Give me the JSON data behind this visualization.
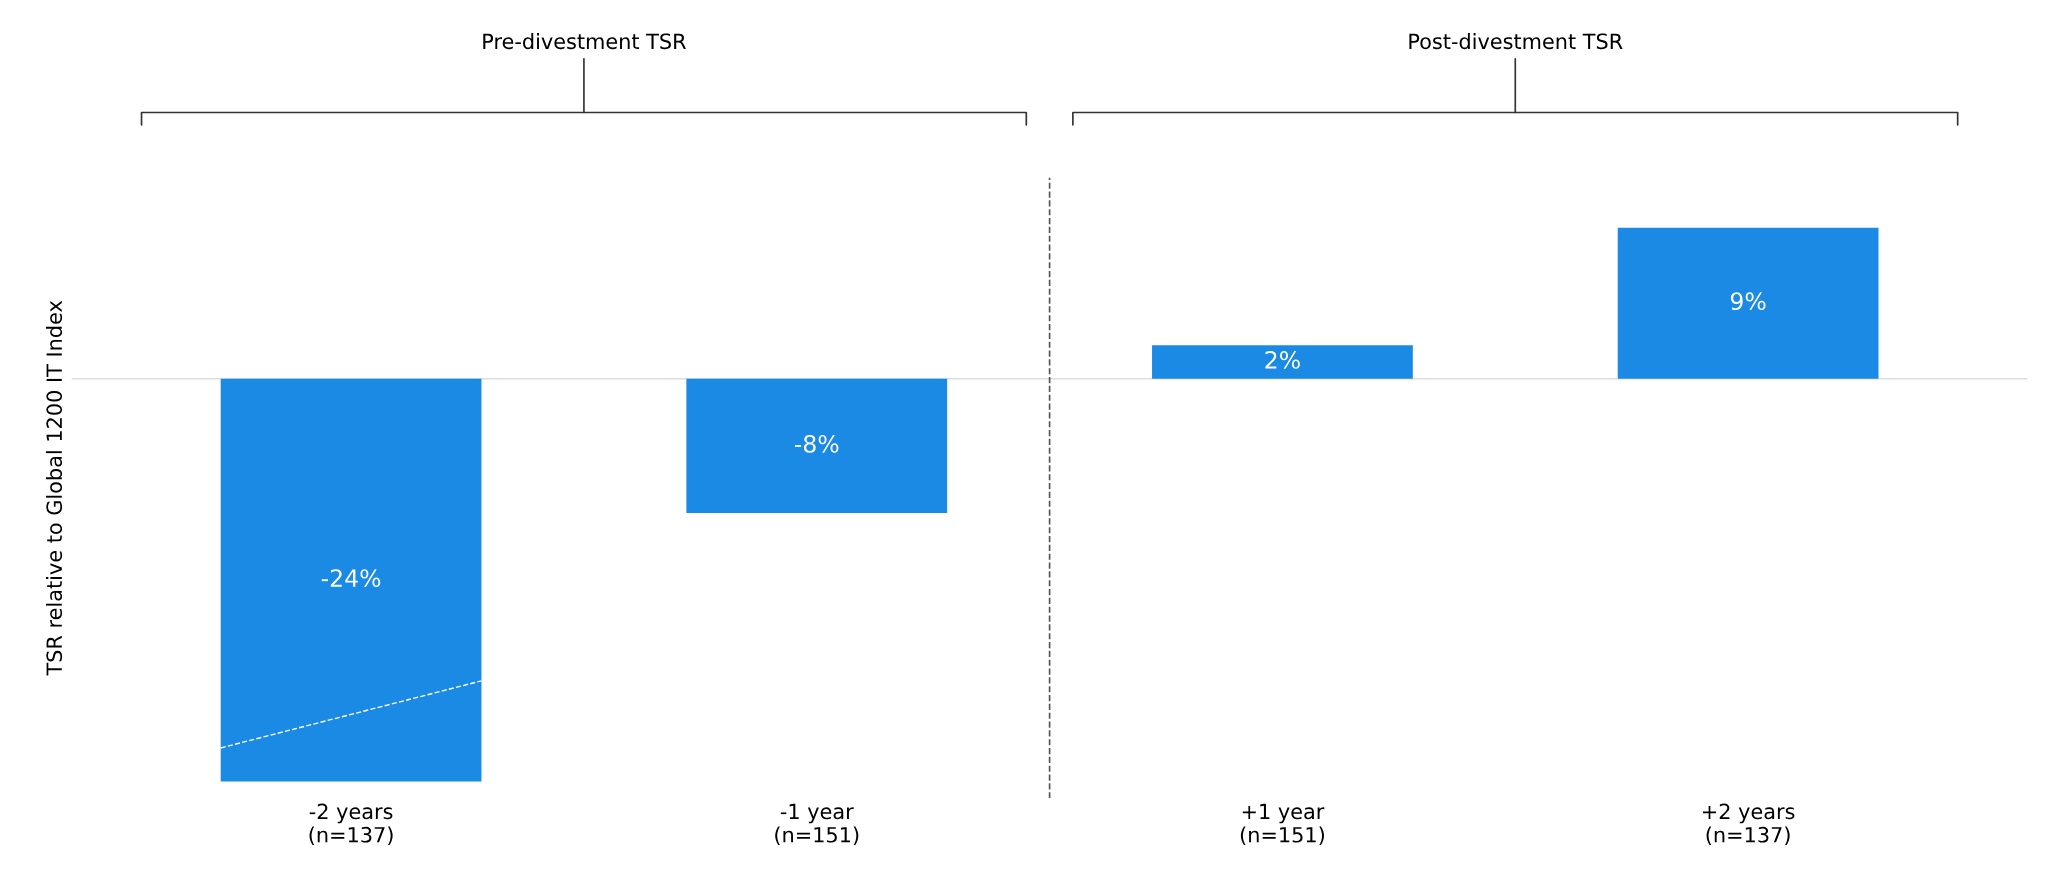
{
  "chart_data": {
    "type": "bar",
    "ylabel": "TSR relative to Global 1200 IT Index",
    "categories": [
      "-2 years\n(n=137)",
      "-1 year\n(n=151)",
      "+1 year\n(n=151)",
      "+2 years\n(n=137)"
    ],
    "values": [
      -24,
      -8,
      2,
      9
    ],
    "value_labels": [
      "-24%",
      "-8%",
      "2%",
      "9%"
    ],
    "color": "#1a8ae5",
    "ylim": [
      -25,
      12
    ],
    "tick_labels": "x",
    "grid": false,
    "annotations": [
      "Pre-divestment TSR",
      "Post-divestment TSR"
    ],
    "ref_lines": [
      {
        "axis": "y",
        "value": 0,
        "color": "#dddddd",
        "line_style": "solid"
      }
    ]
  }
}
